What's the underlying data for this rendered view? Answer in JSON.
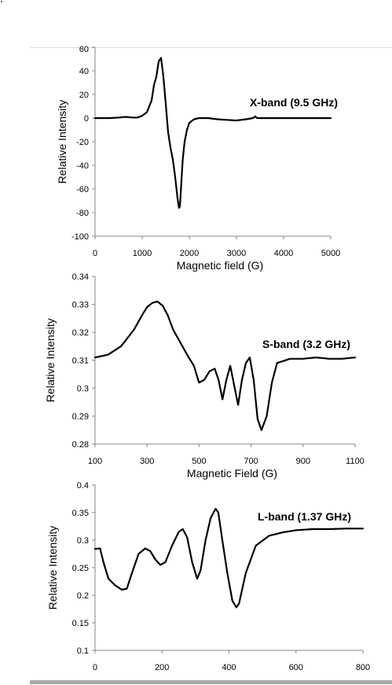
{
  "chart_data": [
    {
      "type": "line",
      "annotation": "X-band (9.5 GHz)",
      "xlabel": "Magnetic field (G)",
      "ylabel": "Relative Intensity",
      "xlim": [
        0,
        5000
      ],
      "ylim": [
        -100,
        60
      ],
      "xticks": [
        "0",
        "1000",
        "2000",
        "3000",
        "4000",
        "5000"
      ],
      "yticks": [
        "-100",
        "-80",
        "-60",
        "-40",
        "-20",
        "0",
        "20",
        "40",
        "60"
      ],
      "series": [
        {
          "x": [
            0,
            300,
            500,
            650,
            800,
            900,
            1000,
            1100,
            1200,
            1250,
            1300,
            1350,
            1400,
            1450,
            1500,
            1550,
            1600,
            1650,
            1700,
            1750,
            1780,
            1800,
            1830,
            1860,
            1900,
            1950,
            2000,
            2100,
            2200,
            2400,
            2600,
            2800,
            3000,
            3200,
            3350,
            3400,
            3420,
            3450,
            3600,
            3800,
            4000,
            4200,
            5000
          ],
          "y": [
            0,
            0,
            0.5,
            1,
            0.5,
            0.5,
            2,
            5,
            15,
            28,
            35,
            48,
            51,
            35,
            12,
            -12,
            -25,
            -35,
            -50,
            -68,
            -76,
            -75,
            -55,
            -35,
            -20,
            -10,
            -4,
            -1,
            0,
            0,
            -1,
            -1.5,
            -2,
            -1,
            0,
            1.5,
            0.5,
            0,
            0,
            0,
            0,
            0,
            0
          ]
        }
      ]
    },
    {
      "type": "line",
      "annotation": "S-band (3.2 GHz)",
      "xlabel": "Magnetic Field (G)",
      "ylabel": "Relative Intensity",
      "xlim": [
        100,
        1100
      ],
      "ylim": [
        0.28,
        0.34
      ],
      "xticks": [
        "100",
        "300",
        "500",
        "700",
        "900",
        "1100"
      ],
      "yticks": [
        "0.28",
        "0.29",
        "0.3",
        "0.31",
        "0.32",
        "0.33",
        "0.34"
      ],
      "series": [
        {
          "x": [
            100,
            150,
            200,
            250,
            280,
            300,
            320,
            340,
            360,
            380,
            400,
            430,
            460,
            480,
            500,
            520,
            540,
            560,
            575,
            590,
            605,
            620,
            635,
            650,
            665,
            680,
            695,
            710,
            725,
            740,
            760,
            780,
            800,
            850,
            900,
            950,
            1000,
            1050,
            1100
          ],
          "y": [
            0.311,
            0.312,
            0.315,
            0.321,
            0.326,
            0.329,
            0.3305,
            0.331,
            0.3295,
            0.326,
            0.321,
            0.316,
            0.311,
            0.308,
            0.302,
            0.303,
            0.306,
            0.307,
            0.303,
            0.296,
            0.303,
            0.308,
            0.301,
            0.294,
            0.303,
            0.309,
            0.311,
            0.303,
            0.289,
            0.285,
            0.29,
            0.302,
            0.309,
            0.3105,
            0.3105,
            0.311,
            0.3105,
            0.3105,
            0.311
          ]
        }
      ]
    },
    {
      "type": "line",
      "annotation": "L-band (1.37 GHz)",
      "xlabel": "",
      "ylabel": "Relative Intensity",
      "xlim": [
        0,
        800
      ],
      "ylim": [
        0.1,
        0.4
      ],
      "xticks": [
        "0",
        "200",
        "400",
        "600",
        "800"
      ],
      "yticks": [
        "0.1",
        "0.15",
        "0.2",
        "0.25",
        "0.3",
        "0.35",
        "0.4"
      ],
      "series": [
        {
          "x": [
            0,
            15,
            25,
            40,
            60,
            80,
            95,
            110,
            130,
            150,
            165,
            180,
            195,
            210,
            230,
            250,
            262,
            275,
            290,
            305,
            315,
            330,
            345,
            360,
            368,
            380,
            395,
            410,
            422,
            430,
            450,
            480,
            520,
            560,
            600,
            650,
            700,
            750,
            800
          ],
          "y": [
            0.284,
            0.285,
            0.26,
            0.23,
            0.218,
            0.21,
            0.212,
            0.24,
            0.275,
            0.285,
            0.28,
            0.265,
            0.255,
            0.26,
            0.29,
            0.315,
            0.32,
            0.305,
            0.26,
            0.23,
            0.245,
            0.3,
            0.34,
            0.357,
            0.35,
            0.3,
            0.24,
            0.19,
            0.178,
            0.185,
            0.24,
            0.29,
            0.308,
            0.314,
            0.318,
            0.32,
            0.32,
            0.321,
            0.321
          ]
        }
      ]
    }
  ]
}
